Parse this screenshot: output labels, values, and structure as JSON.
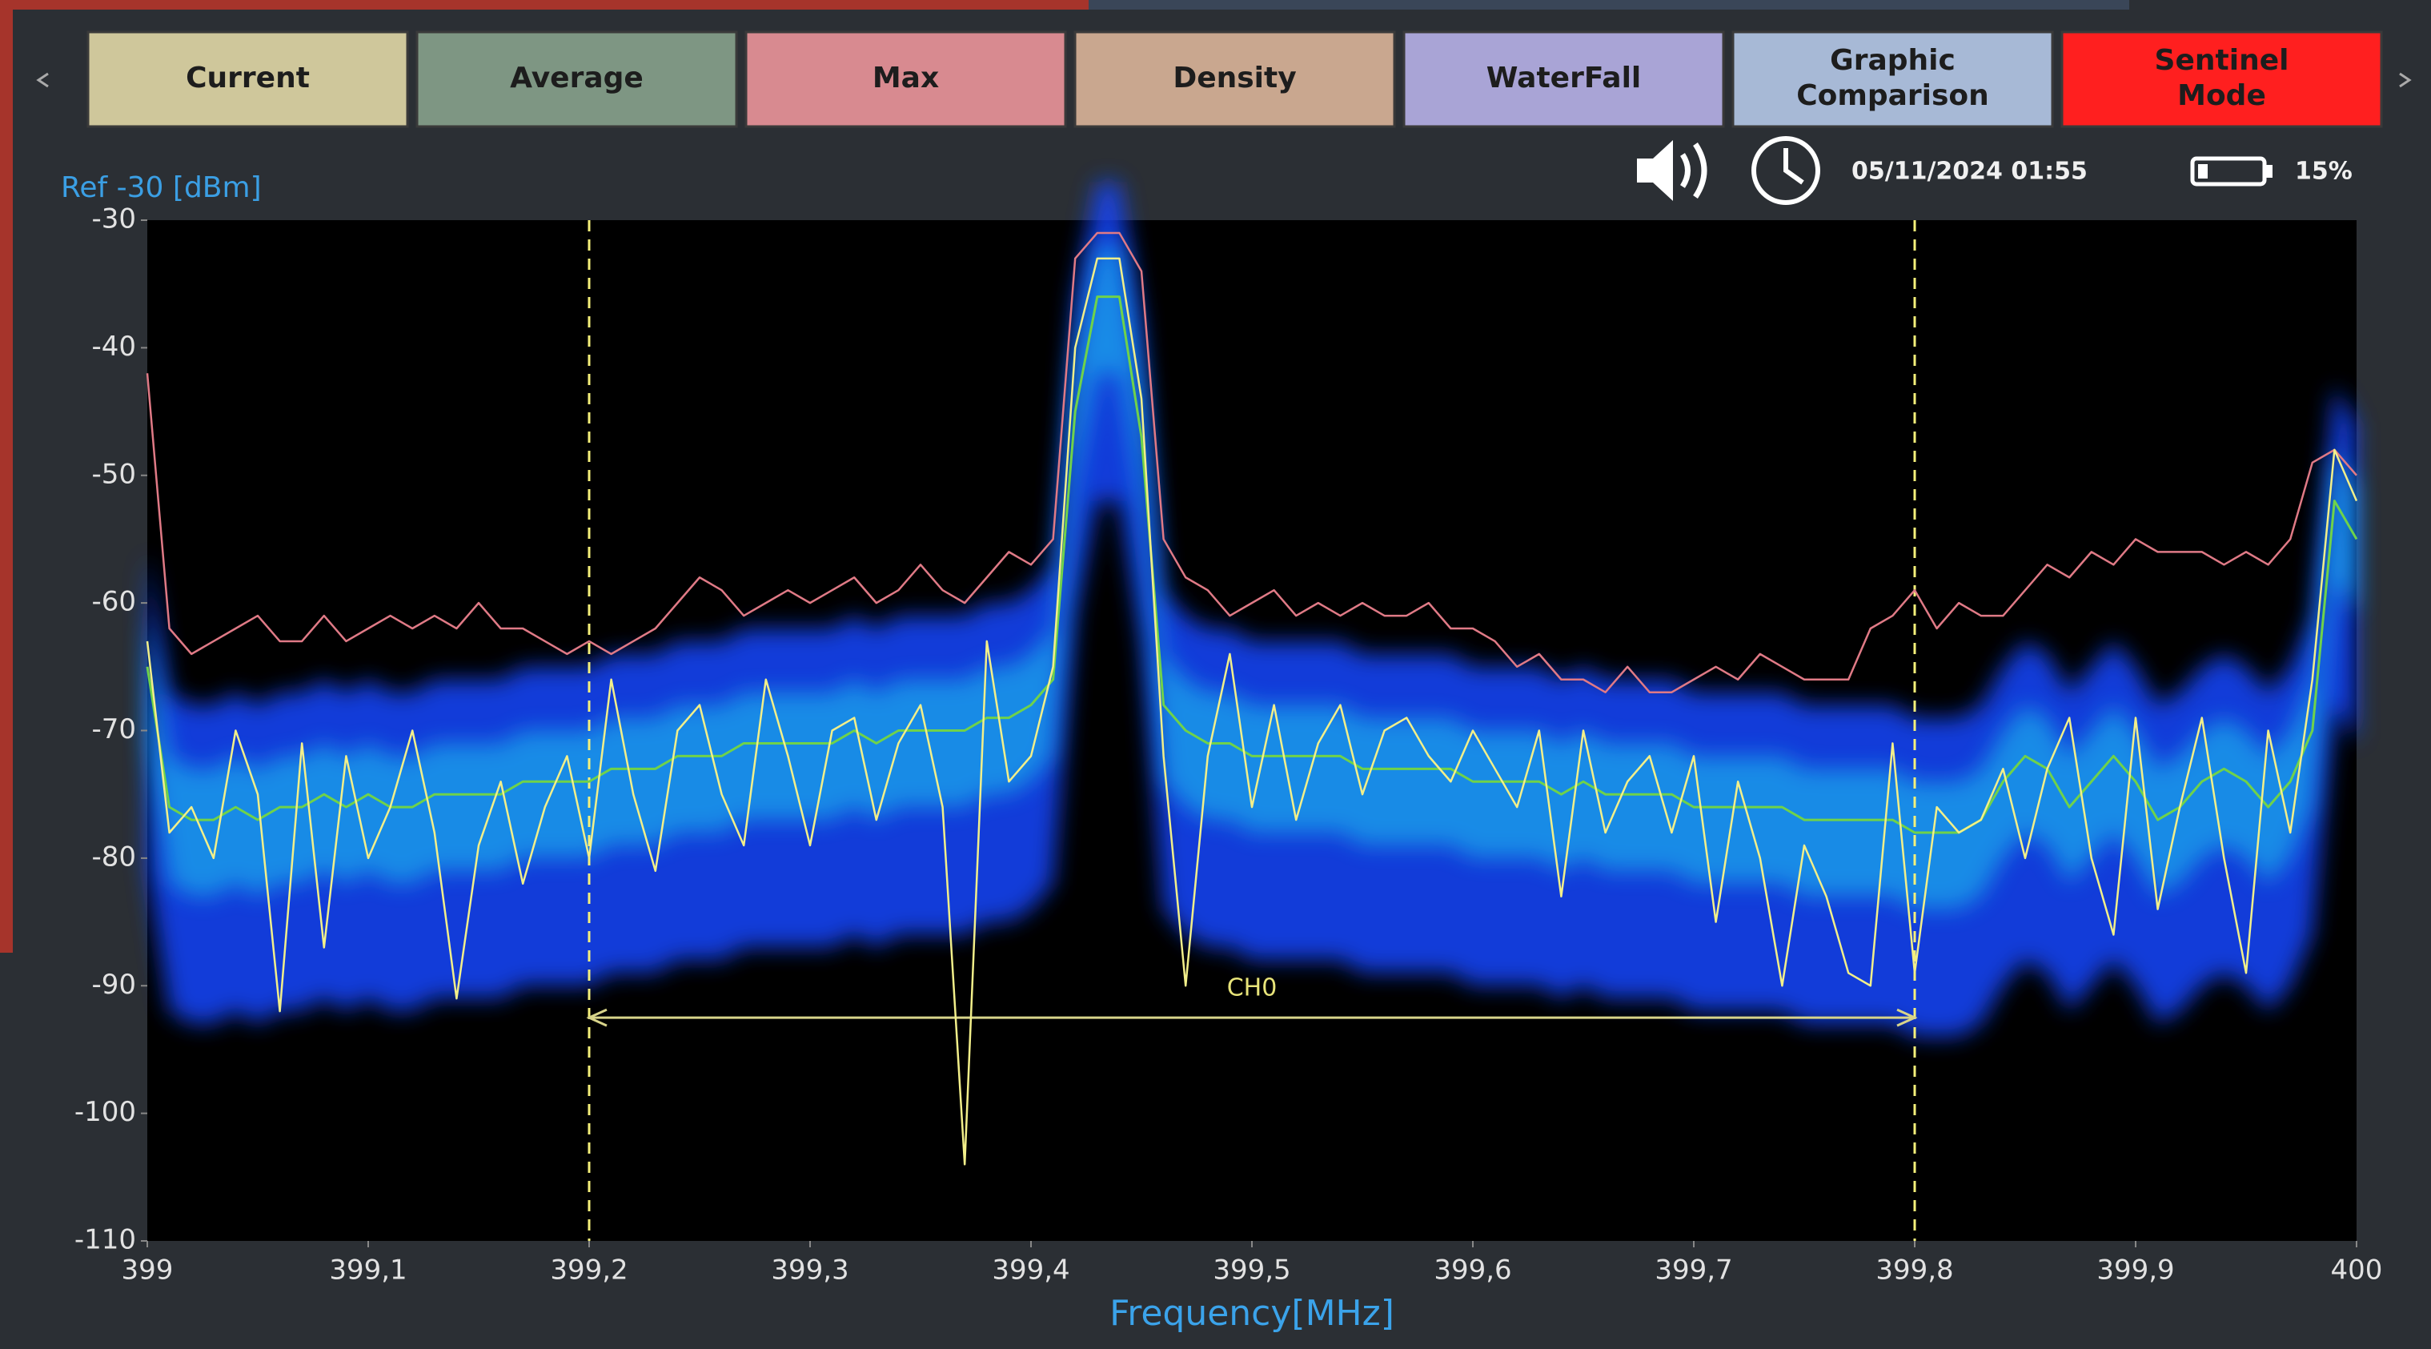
{
  "tabs": [
    "Current",
    "Average",
    "Max",
    "Density",
    "WaterFall",
    "Graphic\nComparison",
    "Sentinel\nMode"
  ],
  "status": {
    "date": "05/11/2024 01:55",
    "battery": "15%"
  },
  "chart_data": {
    "type": "line",
    "ref_label": "Ref  -30 [dBm]",
    "xlabel": "Frequency[MHz]",
    "xlim": [
      399,
      400
    ],
    "ylim": [
      -110,
      -30
    ],
    "yticks": [
      -30,
      -40,
      -50,
      -60,
      -70,
      -80,
      -90,
      -100,
      -110
    ],
    "xticks": [
      399,
      {
        "value": 399.1,
        "label": "399,1"
      },
      {
        "value": 399.2,
        "label": "399,2"
      },
      {
        "value": 399.3,
        "label": "399,3"
      },
      {
        "value": 399.4,
        "label": "399,4"
      },
      {
        "value": 399.5,
        "label": "399,5"
      },
      {
        "value": 399.6,
        "label": "399,6"
      },
      {
        "value": 399.7,
        "label": "399,7"
      },
      {
        "value": 399.8,
        "label": "399,8"
      },
      {
        "value": 399.9,
        "label": "399,9"
      },
      400
    ],
    "channel": {
      "label": "CH0",
      "start": 399.2,
      "end": 399.8,
      "level": -92.5
    },
    "x": [
      399,
      399.01,
      399.02,
      399.03,
      399.04,
      399.05,
      399.06,
      399.07,
      399.08,
      399.09,
      399.1,
      399.11,
      399.12,
      399.13,
      399.14,
      399.15,
      399.16,
      399.17,
      399.18,
      399.19,
      399.2,
      399.21,
      399.22,
      399.23,
      399.24,
      399.25,
      399.26,
      399.27,
      399.28,
      399.29,
      399.3,
      399.31,
      399.32,
      399.33,
      399.34,
      399.35,
      399.36,
      399.37,
      399.38,
      399.39,
      399.4,
      399.41,
      399.42,
      399.43,
      399.44,
      399.45,
      399.46,
      399.47,
      399.48,
      399.49,
      399.5,
      399.51,
      399.52,
      399.53,
      399.54,
      399.55,
      399.56,
      399.57,
      399.58,
      399.59,
      399.6,
      399.61,
      399.62,
      399.63,
      399.64,
      399.65,
      399.66,
      399.67,
      399.68,
      399.69,
      399.7,
      399.71,
      399.72,
      399.73,
      399.74,
      399.75,
      399.76,
      399.77,
      399.78,
      399.79,
      399.8,
      399.81,
      399.82,
      399.83,
      399.84,
      399.85,
      399.86,
      399.87,
      399.88,
      399.89,
      399.9,
      399.91,
      399.92,
      399.93,
      399.94,
      399.95,
      399.96,
      399.97,
      399.98,
      399.99,
      400
    ],
    "series": [
      {
        "color": "#e07a86",
        "values": [
          -42,
          -62,
          -64,
          -63,
          -62,
          -61,
          -63,
          -63,
          -61,
          -63,
          -62,
          -61,
          -62,
          -61,
          -62,
          -60,
          -62,
          -62,
          -63,
          -64,
          -63,
          -64,
          -63,
          -62,
          -60,
          -58,
          -59,
          -61,
          -60,
          -59,
          -60,
          -59,
          -58,
          -60,
          -59,
          -57,
          -59,
          -60,
          -58,
          -56,
          -57,
          -55,
          -33,
          -31,
          -31,
          -34,
          -55,
          -58,
          -59,
          -61,
          -60,
          -59,
          -61,
          -60,
          -61,
          -60,
          -61,
          -61,
          -60,
          -62,
          -62,
          -63,
          -65,
          -64,
          -66,
          -66,
          -67,
          -65,
          -67,
          -67,
          -66,
          -65,
          -66,
          -64,
          -65,
          -66,
          -66,
          -66,
          -62,
          -61,
          -59,
          -62,
          -60,
          -61,
          -61,
          -59,
          -57,
          -58,
          -56,
          -57,
          -55,
          -56,
          -56,
          -56,
          -57,
          -56,
          -57,
          -55,
          -49,
          -48,
          -50
        ]
      },
      {
        "color": "#6fd24a",
        "values": [
          -65,
          -76,
          -77,
          -77,
          -76,
          -77,
          -76,
          -76,
          -75,
          -76,
          -75,
          -76,
          -76,
          -75,
          -75,
          -75,
          -75,
          -74,
          -74,
          -74,
          -74,
          -73,
          -73,
          -73,
          -72,
          -72,
          -72,
          -71,
          -71,
          -71,
          -71,
          -71,
          -70,
          -71,
          -70,
          -70,
          -70,
          -70,
          -69,
          -69,
          -68,
          -66,
          -45,
          -36,
          -36,
          -47,
          -68,
          -70,
          -71,
          -71,
          -72,
          -72,
          -72,
          -72,
          -72,
          -73,
          -73,
          -73,
          -73,
          -73,
          -74,
          -74,
          -74,
          -74,
          -75,
          -74,
          -75,
          -75,
          -75,
          -75,
          -76,
          -76,
          -76,
          -76,
          -76,
          -77,
          -77,
          -77,
          -77,
          -77,
          -78,
          -78,
          -78,
          -77,
          -74,
          -72,
          -73,
          -76,
          -74,
          -72,
          -74,
          -77,
          -76,
          -74,
          -73,
          -74,
          -76,
          -74,
          -70,
          -52,
          -55
        ]
      },
      {
        "color": "#f2ef8a",
        "values": [
          -63,
          -78,
          -76,
          -80,
          -70,
          -75,
          -92,
          -71,
          -87,
          -72,
          -80,
          -76,
          -70,
          -78,
          -91,
          -79,
          -74,
          -82,
          -76,
          -72,
          -80,
          -66,
          -75,
          -81,
          -70,
          -68,
          -75,
          -79,
          -66,
          -72,
          -79,
          -70,
          -69,
          -77,
          -71,
          -68,
          -76,
          -104,
          -63,
          -74,
          -72,
          -65,
          -40,
          -33,
          -33,
          -44,
          -72,
          -90,
          -72,
          -64,
          -76,
          -68,
          -77,
          -71,
          -68,
          -75,
          -70,
          -69,
          -72,
          -74,
          -70,
          -73,
          -76,
          -70,
          -83,
          -70,
          -78,
          -74,
          -72,
          -78,
          -72,
          -85,
          -74,
          -80,
          -90,
          -79,
          -83,
          -89,
          -90,
          -71,
          -89,
          -76,
          -78,
          -77,
          -73,
          -80,
          -73,
          -69,
          -80,
          -86,
          -69,
          -84,
          -76,
          -69,
          -80,
          -89,
          -70,
          -78,
          -66,
          -48,
          -52
        ]
      }
    ]
  }
}
